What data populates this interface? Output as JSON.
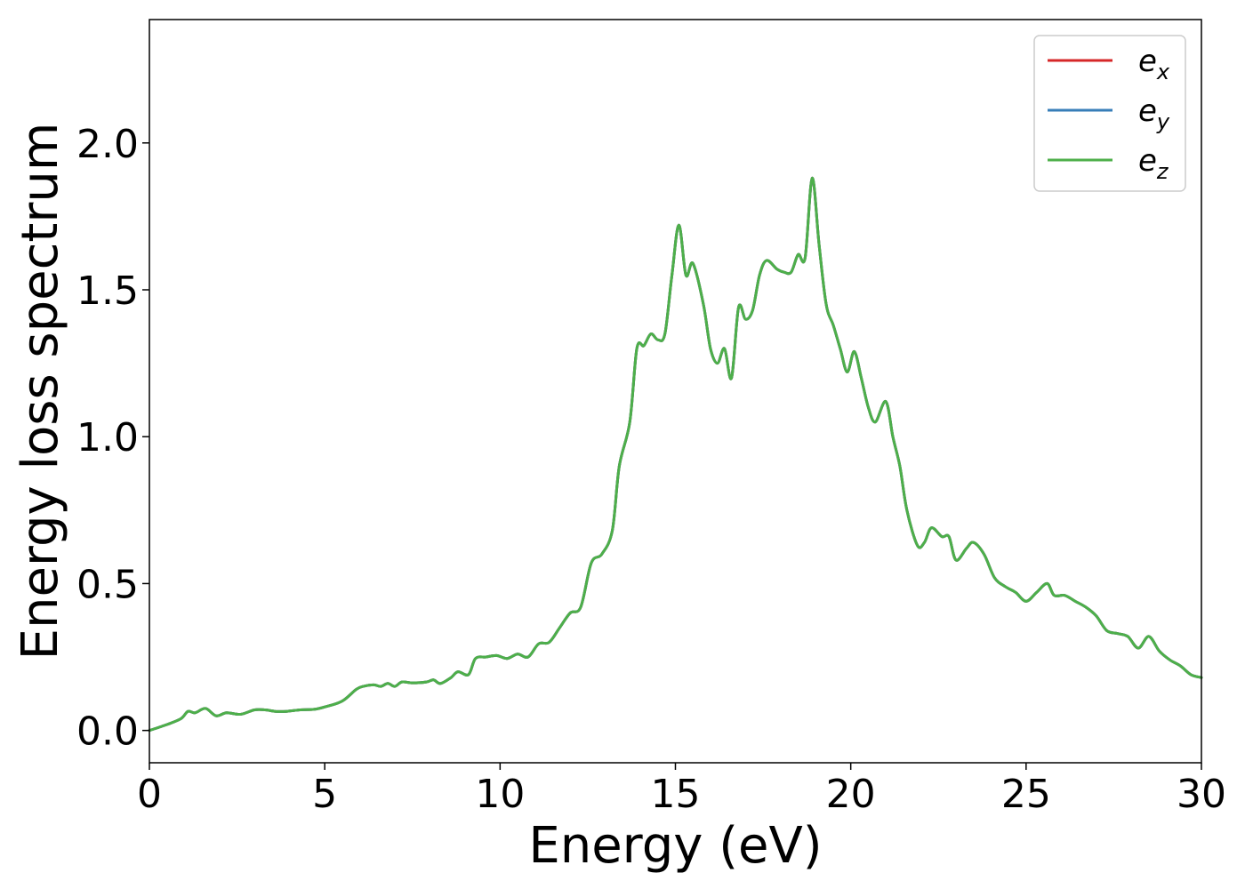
{
  "chart_data": {
    "type": "line",
    "xlabel": "Energy (eV)",
    "ylabel": "Energy loss spectrum",
    "xlim": [
      0,
      30
    ],
    "ylim": [
      -0.11,
      2.42
    ],
    "xticks": [
      0,
      5,
      10,
      15,
      20,
      25,
      30
    ],
    "xtick_labels": [
      "0",
      "5",
      "10",
      "15",
      "20",
      "25",
      "30"
    ],
    "yticks": [
      0.0,
      0.5,
      1.0,
      1.5,
      2.0
    ],
    "ytick_labels": [
      "0.0",
      "0.5",
      "1.0",
      "1.5",
      "2.0"
    ],
    "grid": false,
    "legend_position": "top-right",
    "x": [
      0,
      0.5,
      0.9,
      1.1,
      1.3,
      1.6,
      1.9,
      2.2,
      2.6,
      3.0,
      3.3,
      3.6,
      3.9,
      4.3,
      4.7,
      5.0,
      5.5,
      5.9,
      6.1,
      6.4,
      6.6,
      6.8,
      7.0,
      7.2,
      7.5,
      7.9,
      8.1,
      8.3,
      8.6,
      8.8,
      9.1,
      9.3,
      9.6,
      9.9,
      10.2,
      10.5,
      10.8,
      11.1,
      11.4,
      11.7,
      12.0,
      12.3,
      12.6,
      12.9,
      13.2,
      13.4,
      13.7,
      13.9,
      14.1,
      14.3,
      14.5,
      14.7,
      14.9,
      15.1,
      15.3,
      15.5,
      15.8,
      16.0,
      16.2,
      16.4,
      16.6,
      16.8,
      17.0,
      17.2,
      17.4,
      17.6,
      17.9,
      18.1,
      18.3,
      18.5,
      18.7,
      18.9,
      19.1,
      19.3,
      19.5,
      19.7,
      19.9,
      20.1,
      20.3,
      20.5,
      20.7,
      21.0,
      21.2,
      21.4,
      21.6,
      21.9,
      22.1,
      22.3,
      22.6,
      22.8,
      23.0,
      23.3,
      23.5,
      23.8,
      24.1,
      24.4,
      24.7,
      25.0,
      25.3,
      25.6,
      25.8,
      26.1,
      26.4,
      26.7,
      27.0,
      27.3,
      27.6,
      27.9,
      28.2,
      28.5,
      28.8,
      29.1,
      29.4,
      29.7,
      30.0
    ],
    "series": [
      {
        "name": "e_x",
        "color": "#d62728",
        "values": [
          0.0,
          0.02,
          0.04,
          0.065,
          0.06,
          0.075,
          0.05,
          0.06,
          0.055,
          0.07,
          0.07,
          0.065,
          0.065,
          0.07,
          0.072,
          0.08,
          0.1,
          0.14,
          0.15,
          0.155,
          0.15,
          0.16,
          0.15,
          0.165,
          0.162,
          0.165,
          0.172,
          0.16,
          0.18,
          0.2,
          0.19,
          0.245,
          0.25,
          0.255,
          0.245,
          0.26,
          0.25,
          0.295,
          0.3,
          0.35,
          0.4,
          0.42,
          0.57,
          0.6,
          0.68,
          0.9,
          1.05,
          1.3,
          1.31,
          1.35,
          1.33,
          1.35,
          1.55,
          1.72,
          1.55,
          1.59,
          1.45,
          1.3,
          1.25,
          1.3,
          1.2,
          1.44,
          1.4,
          1.43,
          1.55,
          1.6,
          1.57,
          1.56,
          1.56,
          1.62,
          1.61,
          1.88,
          1.65,
          1.45,
          1.38,
          1.3,
          1.22,
          1.29,
          1.2,
          1.1,
          1.05,
          1.12,
          1.0,
          0.9,
          0.75,
          0.63,
          0.64,
          0.69,
          0.66,
          0.66,
          0.58,
          0.62,
          0.64,
          0.6,
          0.52,
          0.49,
          0.47,
          0.44,
          0.47,
          0.5,
          0.46,
          0.46,
          0.44,
          0.42,
          0.39,
          0.34,
          0.33,
          0.32,
          0.28,
          0.32,
          0.27,
          0.24,
          0.22,
          0.19,
          0.18
        ]
      },
      {
        "name": "e_y",
        "color": "#377eb8",
        "values": [
          0.0,
          0.02,
          0.04,
          0.065,
          0.06,
          0.075,
          0.05,
          0.06,
          0.055,
          0.07,
          0.07,
          0.065,
          0.065,
          0.07,
          0.072,
          0.08,
          0.1,
          0.14,
          0.15,
          0.155,
          0.15,
          0.16,
          0.15,
          0.165,
          0.162,
          0.165,
          0.172,
          0.16,
          0.18,
          0.2,
          0.19,
          0.245,
          0.25,
          0.255,
          0.245,
          0.26,
          0.25,
          0.295,
          0.3,
          0.35,
          0.4,
          0.42,
          0.57,
          0.6,
          0.68,
          0.9,
          1.05,
          1.3,
          1.31,
          1.35,
          1.33,
          1.35,
          1.55,
          1.72,
          1.55,
          1.59,
          1.45,
          1.3,
          1.25,
          1.3,
          1.2,
          1.44,
          1.4,
          1.43,
          1.55,
          1.6,
          1.57,
          1.56,
          1.56,
          1.62,
          1.61,
          1.88,
          1.65,
          1.45,
          1.38,
          1.3,
          1.22,
          1.29,
          1.2,
          1.1,
          1.05,
          1.12,
          1.0,
          0.9,
          0.75,
          0.63,
          0.64,
          0.69,
          0.66,
          0.66,
          0.58,
          0.62,
          0.64,
          0.6,
          0.52,
          0.49,
          0.47,
          0.44,
          0.47,
          0.5,
          0.46,
          0.46,
          0.44,
          0.42,
          0.39,
          0.34,
          0.33,
          0.32,
          0.28,
          0.32,
          0.27,
          0.24,
          0.22,
          0.19,
          0.18
        ]
      },
      {
        "name": "e_z",
        "color": "#4daf4a",
        "values": [
          0.0,
          0.02,
          0.04,
          0.065,
          0.06,
          0.075,
          0.05,
          0.06,
          0.055,
          0.07,
          0.07,
          0.065,
          0.065,
          0.07,
          0.072,
          0.08,
          0.1,
          0.14,
          0.15,
          0.155,
          0.15,
          0.16,
          0.15,
          0.165,
          0.162,
          0.165,
          0.172,
          0.16,
          0.18,
          0.2,
          0.19,
          0.245,
          0.25,
          0.255,
          0.245,
          0.26,
          0.25,
          0.295,
          0.3,
          0.35,
          0.4,
          0.42,
          0.57,
          0.6,
          0.68,
          0.9,
          1.05,
          1.3,
          1.31,
          1.35,
          1.33,
          1.35,
          1.55,
          1.72,
          1.55,
          1.59,
          1.45,
          1.3,
          1.25,
          1.3,
          1.2,
          1.44,
          1.4,
          1.43,
          1.55,
          1.6,
          1.57,
          1.56,
          1.56,
          1.62,
          1.61,
          1.88,
          1.65,
          1.45,
          1.38,
          1.3,
          1.22,
          1.29,
          1.2,
          1.1,
          1.05,
          1.12,
          1.0,
          0.9,
          0.75,
          0.63,
          0.64,
          0.69,
          0.66,
          0.66,
          0.58,
          0.62,
          0.64,
          0.6,
          0.52,
          0.49,
          0.47,
          0.44,
          0.47,
          0.5,
          0.46,
          0.46,
          0.44,
          0.42,
          0.39,
          0.34,
          0.33,
          0.32,
          0.28,
          0.32,
          0.27,
          0.24,
          0.22,
          0.19,
          0.18
        ]
      }
    ],
    "legend": [
      {
        "base": "e",
        "sub": "x",
        "color": "#d62728"
      },
      {
        "base": "e",
        "sub": "y",
        "color": "#377eb8"
      },
      {
        "base": "e",
        "sub": "z",
        "color": "#4daf4a"
      }
    ]
  }
}
